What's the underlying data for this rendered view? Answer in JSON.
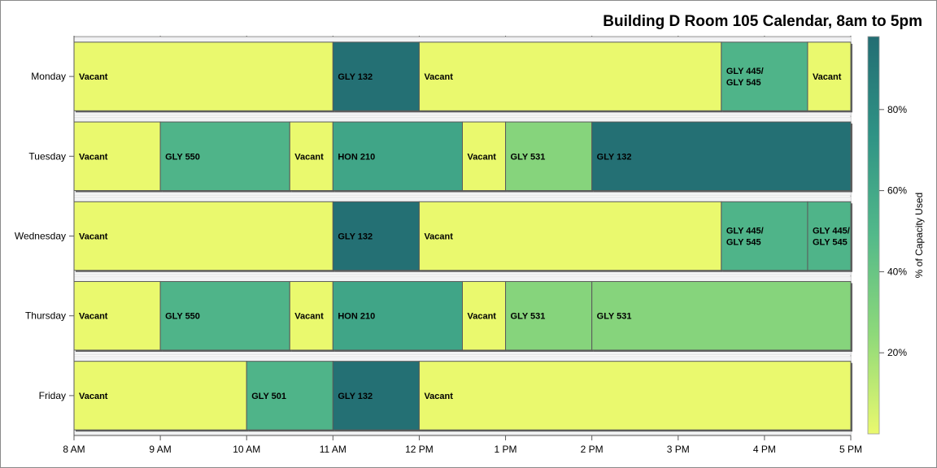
{
  "chart_data": {
    "type": "bar",
    "subtype": "horizontal-timeline",
    "title": "Building D Room 105 Calendar, 8am to 5pm",
    "xlabel": "",
    "ylabel": "",
    "x_ticks": [
      "8 AM",
      "9 AM",
      "10 AM",
      "11 AM",
      "12 PM",
      "1 PM",
      "2 PM",
      "3 PM",
      "4 PM",
      "5 PM"
    ],
    "xlim": [
      8,
      17
    ],
    "categories": [
      "Monday",
      "Tuesday",
      "Wednesday",
      "Thursday",
      "Friday"
    ],
    "rows": [
      {
        "day": "Monday",
        "segments": [
          {
            "label": "Vacant",
            "start": 8,
            "end": 11,
            "capacity": 0
          },
          {
            "label": "GLY 132",
            "start": 11,
            "end": 12,
            "capacity": 96
          },
          {
            "label": "Vacant",
            "start": 12,
            "end": 15.5,
            "capacity": 0
          },
          {
            "label": "GLY 445/\nGLY 545",
            "start": 15.5,
            "end": 16.5,
            "capacity": 52
          },
          {
            "label": "Vacant",
            "start": 16.5,
            "end": 17,
            "capacity": 0
          }
        ]
      },
      {
        "day": "Tuesday",
        "segments": [
          {
            "label": "Vacant",
            "start": 8,
            "end": 9,
            "capacity": 0
          },
          {
            "label": "GLY 550",
            "start": 9,
            "end": 10.5,
            "capacity": 52
          },
          {
            "label": "Vacant",
            "start": 10.5,
            "end": 11,
            "capacity": 0
          },
          {
            "label": "HON 210",
            "start": 11,
            "end": 12.5,
            "capacity": 62
          },
          {
            "label": "Vacant",
            "start": 12.5,
            "end": 13,
            "capacity": 0
          },
          {
            "label": "GLY 531",
            "start": 13,
            "end": 14,
            "capacity": 28
          },
          {
            "label": "GLY 132",
            "start": 14,
            "end": 17,
            "capacity": 96
          }
        ]
      },
      {
        "day": "Wednesday",
        "segments": [
          {
            "label": "Vacant",
            "start": 8,
            "end": 11,
            "capacity": 0
          },
          {
            "label": "GLY 132",
            "start": 11,
            "end": 12,
            "capacity": 96
          },
          {
            "label": "Vacant",
            "start": 12,
            "end": 15.5,
            "capacity": 0
          },
          {
            "label": "GLY 445/\nGLY 545",
            "start": 15.5,
            "end": 16.5,
            "capacity": 52
          },
          {
            "label": "GLY 445/\nGLY 545",
            "start": 16.5,
            "end": 17,
            "capacity": 52
          }
        ]
      },
      {
        "day": "Thursday",
        "segments": [
          {
            "label": "Vacant",
            "start": 8,
            "end": 9,
            "capacity": 0
          },
          {
            "label": "GLY 550",
            "start": 9,
            "end": 10.5,
            "capacity": 52
          },
          {
            "label": "Vacant",
            "start": 10.5,
            "end": 11,
            "capacity": 0
          },
          {
            "label": "HON 210",
            "start": 11,
            "end": 12.5,
            "capacity": 62
          },
          {
            "label": "Vacant",
            "start": 12.5,
            "end": 13,
            "capacity": 0
          },
          {
            "label": "GLY 531",
            "start": 13,
            "end": 14,
            "capacity": 28
          },
          {
            "label": "GLY 531",
            "start": 14,
            "end": 17,
            "capacity": 28
          }
        ]
      },
      {
        "day": "Friday",
        "segments": [
          {
            "label": "Vacant",
            "start": 8,
            "end": 10,
            "capacity": 0
          },
          {
            "label": "GLY 501",
            "start": 10,
            "end": 11,
            "capacity": 52
          },
          {
            "label": "GLY 132",
            "start": 11,
            "end": 12,
            "capacity": 96
          },
          {
            "label": "Vacant",
            "start": 12,
            "end": 17,
            "capacity": 0
          }
        ]
      }
    ],
    "colorbar": {
      "title": "% of Capacity Used",
      "ticks": [
        "20%",
        "40%",
        "60%",
        "80%"
      ],
      "tick_values": [
        20,
        40,
        60,
        80
      ],
      "range": [
        0,
        98
      ],
      "colors": [
        "#eaf96e",
        "#8ed97a",
        "#53b98a",
        "#2f9385",
        "#236d73"
      ]
    },
    "grid": false,
    "legend": "right"
  }
}
